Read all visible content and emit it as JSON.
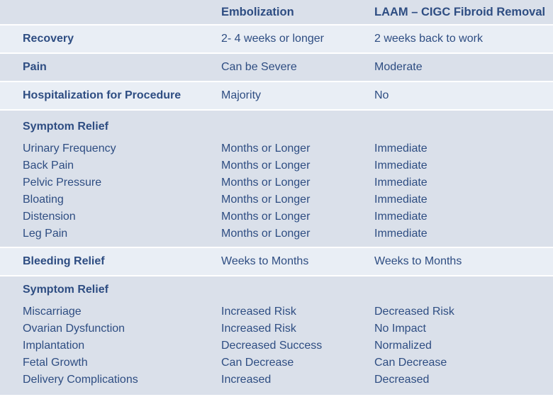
{
  "colors": {
    "band_dark": "#dae0ea",
    "band_light": "#e9eef5",
    "text": "#2e4d82",
    "separator": "#ffffff"
  },
  "header": {
    "embolization": "Embolization",
    "laam": "LAAM – CIGC Fibroid Removal"
  },
  "rows": {
    "recovery": {
      "label": "Recovery",
      "embolization": "2- 4 weeks or longer",
      "laam": "2 weeks back to work"
    },
    "pain": {
      "label": "Pain",
      "embolization": "Can be Severe",
      "laam": "Moderate"
    },
    "hospitalization": {
      "label": "Hospitalization for Procedure",
      "embolization": "Majority",
      "laam": "No"
    },
    "bleeding_relief": {
      "label": "Bleeding Relief",
      "embolization": "Weeks to Months",
      "laam": "Weeks to Months"
    }
  },
  "symptom_relief_1": {
    "title": "Symptom Relief",
    "items": [
      {
        "label": "Urinary Frequency",
        "embolization": "Months or Longer",
        "laam": "Immediate"
      },
      {
        "label": "Back Pain",
        "embolization": "Months or Longer",
        "laam": "Immediate"
      },
      {
        "label": "Pelvic Pressure",
        "embolization": "Months or Longer",
        "laam": "Immediate"
      },
      {
        "label": "Bloating",
        "embolization": "Months or Longer",
        "laam": "Immediate"
      },
      {
        "label": "Distension",
        "embolization": "Months or Longer",
        "laam": "Immediate"
      },
      {
        "label": "Leg Pain",
        "embolization": "Months or Longer",
        "laam": "Immediate"
      }
    ]
  },
  "symptom_relief_2": {
    "title": "Symptom Relief",
    "items": [
      {
        "label": "Miscarriage",
        "embolization": "Increased Risk",
        "laam": "Decreased Risk"
      },
      {
        "label": "Ovarian Dysfunction",
        "embolization": "Increased Risk",
        "laam": "No Impact"
      },
      {
        "label": "Implantation",
        "embolization": "Decreased Success",
        "laam": "Normalized"
      },
      {
        "label": "Fetal Growth",
        "embolization": "Can Decrease",
        "laam": "Can Decrease"
      },
      {
        "label": "Delivery Complications",
        "embolization": "Increased",
        "laam": "Decreased"
      }
    ]
  }
}
